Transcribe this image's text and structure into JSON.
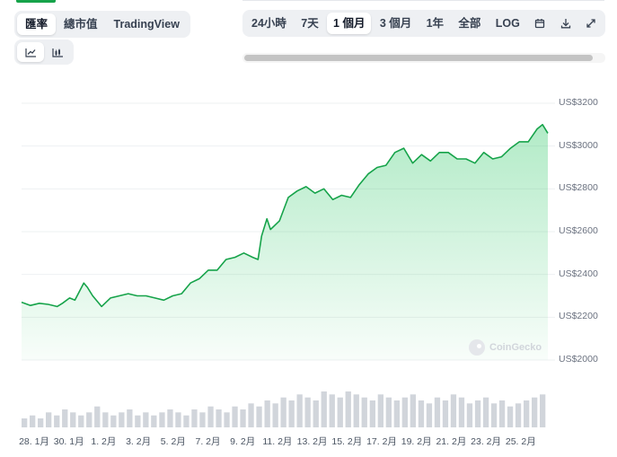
{
  "tabs": {
    "type": [
      {
        "label": "匯率",
        "active": true
      },
      {
        "label": "總市值",
        "active": false
      },
      {
        "label": "TradingView",
        "active": false
      }
    ],
    "range": [
      {
        "label": "24小時",
        "active": false
      },
      {
        "label": "7天",
        "active": false
      },
      {
        "label": "1 個月",
        "active": true
      },
      {
        "label": "3 個月",
        "active": false
      },
      {
        "label": "1年",
        "active": false
      },
      {
        "label": "全部",
        "active": false
      },
      {
        "label": "LOG",
        "active": false
      }
    ],
    "tools": [
      "calendar-icon",
      "download-icon",
      "expand-icon"
    ],
    "view": [
      {
        "icon": "line-chart-icon",
        "active": true
      },
      {
        "icon": "candlestick-chart-icon",
        "active": false
      }
    ]
  },
  "watermark": "CoinGecko",
  "colors": {
    "line": "#16a34a",
    "fill": "#22c55e",
    "volume": "#d1d5db",
    "accent": "#16a34a"
  },
  "chart_data": {
    "type": "area",
    "y_axis_labels": [
      "US$3200",
      "US$3000",
      "US$2800",
      "US$2600",
      "US$2400",
      "US$2200",
      "US$2000"
    ],
    "y_ticks": [
      3200,
      3000,
      2800,
      2600,
      2400,
      2200,
      2000
    ],
    "ylim": [
      2000,
      3200
    ],
    "x_axis_labels": [
      "28. 1月",
      "30. 1月",
      "1. 2月",
      "3. 2月",
      "5. 2月",
      "7. 2月",
      "9. 2月",
      "11. 2月",
      "13. 2月",
      "15. 2月",
      "17. 2月",
      "19. 2月",
      "21. 2月",
      "23. 2月",
      "25. 2月"
    ],
    "xlim": [
      0,
      29.6
    ],
    "grid": true,
    "series": [
      {
        "x": [
          0,
          0.5,
          1,
          1.5,
          2,
          2.3,
          2.7,
          3,
          3.5,
          3.7,
          4,
          4.5,
          5,
          5.5,
          6,
          6.5,
          7,
          7.5,
          8,
          8.5,
          9,
          9.5,
          10,
          10.5,
          11,
          11.5,
          12,
          12.5,
          13,
          13.3,
          13.5,
          13.8,
          14,
          14.5,
          15,
          15.5,
          16,
          16.5,
          17,
          17.5,
          18,
          18.5,
          19,
          19.5,
          20,
          20.5,
          21,
          21.5,
          22,
          22.5,
          23,
          23.5,
          24,
          24.5,
          25,
          25.5,
          26,
          26.5,
          27,
          27.5,
          28,
          28.5,
          29,
          29.3,
          29.6
        ],
        "values": [
          2270,
          2255,
          2265,
          2260,
          2250,
          2265,
          2290,
          2280,
          2360,
          2340,
          2300,
          2250,
          2290,
          2300,
          2310,
          2300,
          2300,
          2290,
          2280,
          2300,
          2310,
          2360,
          2380,
          2420,
          2420,
          2470,
          2480,
          2500,
          2480,
          2470,
          2580,
          2660,
          2610,
          2650,
          2760,
          2790,
          2810,
          2780,
          2800,
          2750,
          2770,
          2760,
          2820,
          2870,
          2900,
          2910,
          2970,
          2990,
          2920,
          2960,
          2930,
          2970,
          2970,
          2940,
          2940,
          2920,
          2970,
          2940,
          2950,
          2990,
          3020,
          3020,
          3080,
          3100,
          3060
        ]
      }
    ],
    "volume": [
      3,
      4,
      3,
      5,
      4,
      6,
      5,
      4,
      5,
      7,
      5,
      4,
      5,
      6,
      4,
      5,
      4,
      5,
      6,
      5,
      4,
      6,
      5,
      7,
      6,
      5,
      7,
      6,
      8,
      7,
      9,
      8,
      10,
      9,
      11,
      10,
      9,
      12,
      11,
      10,
      12,
      11,
      10,
      9,
      11,
      10,
      9,
      10,
      11,
      9,
      8,
      10,
      9,
      11,
      10,
      8,
      9,
      10,
      8,
      9,
      7,
      8,
      9,
      10,
      11
    ]
  }
}
